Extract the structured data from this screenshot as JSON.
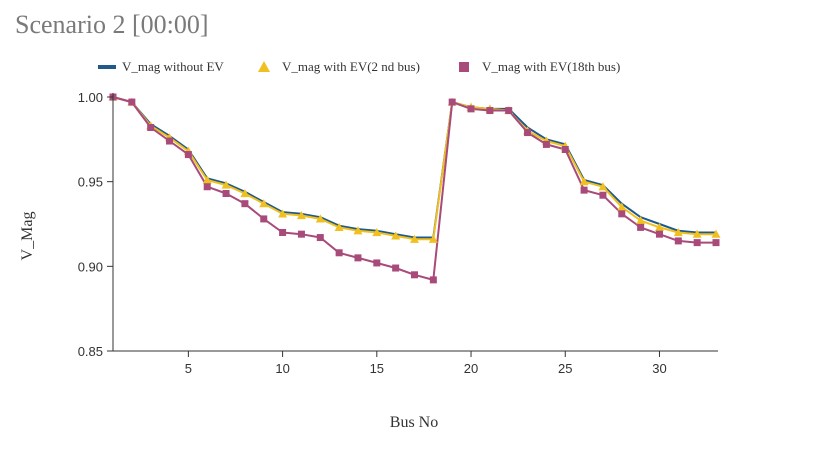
{
  "title": "Scenario 2 [00:00]",
  "chart_data": {
    "type": "line",
    "title": "Scenario 2 [00:00]",
    "xlabel": "Bus No",
    "ylabel": "V_Mag",
    "xlim": [
      1,
      33
    ],
    "ylim": [
      0.85,
      1.0
    ],
    "x_ticks": [
      5,
      10,
      15,
      20,
      25,
      30
    ],
    "y_ticks": [
      0.85,
      0.9,
      0.95,
      1.0
    ],
    "y_tick_labels": [
      "0.85",
      "0.90",
      "0.95",
      "1.00"
    ],
    "x": [
      1,
      2,
      3,
      4,
      5,
      6,
      7,
      8,
      9,
      10,
      11,
      12,
      13,
      14,
      15,
      16,
      17,
      18,
      19,
      20,
      21,
      22,
      23,
      24,
      25,
      26,
      27,
      28,
      29,
      30,
      31,
      32,
      33
    ],
    "legend_position": "top",
    "series": [
      {
        "name": "V_mag without EV",
        "color": "#1f5a8a",
        "marker": "line",
        "values": [
          1.0,
          0.997,
          0.984,
          0.977,
          0.969,
          0.952,
          0.949,
          0.944,
          0.938,
          0.932,
          0.931,
          0.929,
          0.924,
          0.922,
          0.921,
          0.919,
          0.917,
          0.917,
          0.997,
          0.994,
          0.993,
          0.993,
          0.982,
          0.975,
          0.972,
          0.951,
          0.948,
          0.937,
          0.929,
          0.925,
          0.921,
          0.92,
          0.92
        ]
      },
      {
        "name": "V_mag with EV(2 nd bus)",
        "color": "#f0c020",
        "marker": "triangle",
        "values": [
          1.0,
          0.997,
          0.983,
          0.976,
          0.968,
          0.951,
          0.948,
          0.943,
          0.937,
          0.931,
          0.93,
          0.928,
          0.923,
          0.921,
          0.92,
          0.918,
          0.916,
          0.916,
          0.997,
          0.994,
          0.993,
          0.992,
          0.98,
          0.974,
          0.971,
          0.95,
          0.947,
          0.935,
          0.927,
          0.923,
          0.92,
          0.919,
          0.919
        ]
      },
      {
        "name": "V_mag with EV(18th bus)",
        "color": "#a84a7a",
        "marker": "square",
        "values": [
          1.0,
          0.997,
          0.982,
          0.974,
          0.966,
          0.947,
          0.943,
          0.937,
          0.928,
          0.92,
          0.919,
          0.917,
          0.908,
          0.905,
          0.902,
          0.899,
          0.895,
          0.892,
          0.997,
          0.993,
          0.992,
          0.992,
          0.979,
          0.972,
          0.969,
          0.945,
          0.942,
          0.931,
          0.923,
          0.919,
          0.915,
          0.914,
          0.914
        ]
      }
    ]
  }
}
